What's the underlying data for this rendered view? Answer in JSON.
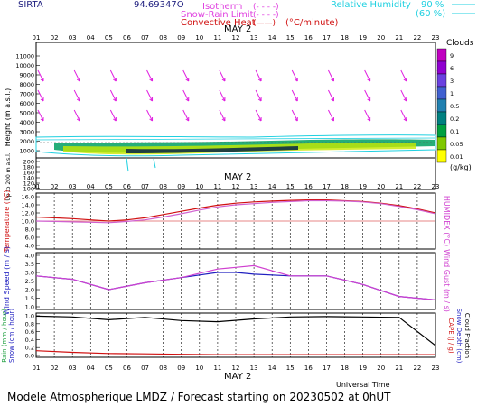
{
  "header": {
    "station": "SIRTA",
    "code": "94.69347O",
    "legend": [
      {
        "label": "Isotherm",
        "sample": "(- - - -)",
        "color": "#e040e0"
      },
      {
        "label": "Snow-Rain Limit",
        "sample": "(- - - -)",
        "color": "#e040e0"
      },
      {
        "label": "Convective Heat",
        "sample": "(——)",
        "unit": "(°C/minute)",
        "color": "#d01010"
      }
    ],
    "humidity": [
      {
        "label": "Relative Humidity",
        "v1": "90 %",
        "v2": "(60 %)",
        "color": "#20d0e0"
      }
    ]
  },
  "axis_hours": [
    "01",
    "02",
    "03",
    "04",
    "05",
    "06",
    "07",
    "08",
    "09",
    "10",
    "11",
    "12",
    "13",
    "14",
    "15",
    "16",
    "17",
    "18",
    "19",
    "20",
    "21",
    "22",
    "23"
  ],
  "day_label": "MAY  2",
  "clouds_legend": {
    "title": "Clouds",
    "unit": "(g/kg)",
    "levels": [
      "9",
      "6",
      "3",
      "1",
      "0.5",
      "0.2",
      "0.1",
      "0.05",
      "0.01"
    ],
    "colors": [
      "#c000c0",
      "#9000d0",
      "#6a40e0",
      "#4060d0",
      "#2080b0",
      "#008080",
      "#00a040",
      "#80c800",
      "#ffff00"
    ]
  },
  "footer": {
    "title": "Modele Atmospherique LMDZ / Forecast starting on 20230502 at 0hUT",
    "universal_time": "Universal Time"
  },
  "chart_data": [
    {
      "type": "heatmap",
      "ylabel": "Height  (m  a.s.l.)",
      "ylabel2": "Up to 200 m a.s.l.",
      "upper_ticks": [
        "11000",
        "10000",
        "9000",
        "8000",
        "7000",
        "6000",
        "5000",
        "4000",
        "3000",
        "2000",
        "1000"
      ],
      "lower_ticks": [
        "200",
        "180",
        "160",
        "140",
        "120",
        "100"
      ],
      "legend": "Clouds"
    },
    {
      "type": "line",
      "ylabel": "Temperature (°C)",
      "ylabel2": "HUMIDEX (°C)",
      "yticks": [
        "16.0",
        "14.0",
        "12.0",
        "10.0",
        "8.0",
        "6.0",
        "4.0"
      ],
      "ylim": [
        4,
        16
      ],
      "x": [
        1,
        2,
        3,
        4,
        5,
        6,
        7,
        8,
        9,
        10,
        11,
        12,
        13,
        14,
        15,
        16,
        17,
        18,
        19,
        20,
        21,
        22,
        23
      ],
      "series": [
        {
          "values": [
            11.0,
            10.8,
            10.6,
            10.3,
            10.0,
            10.3,
            10.8,
            11.6,
            12.4,
            13.2,
            13.9,
            14.4,
            14.7,
            14.9,
            15.1,
            15.2,
            15.2,
            15.0,
            14.8,
            14.4,
            13.8,
            13.0,
            12.0
          ],
          "color": "#d01010"
        },
        {
          "values": [
            10.0,
            9.9,
            9.8,
            9.7,
            9.6,
            9.9,
            10.3,
            11.0,
            11.8,
            12.7,
            13.5,
            14.0,
            14.3,
            14.6,
            14.8,
            15.0,
            15.0,
            14.9,
            14.7,
            14.3,
            13.6,
            12.8,
            11.8
          ],
          "color": "#d060d0"
        }
      ]
    },
    {
      "type": "line",
      "ylabel": "Wind Speed (m / s)",
      "ylabel2": "Wind Gust (m / s)",
      "yticks": [
        "4.0",
        "3.5",
        "3.0",
        "2.5",
        "2.0",
        "1.5",
        "1.0"
      ],
      "ylim": [
        1,
        4
      ],
      "x": [
        1,
        3,
        5,
        7,
        9,
        11,
        12,
        13,
        15,
        17,
        19,
        21,
        23
      ],
      "series": [
        {
          "values": [
            2.8,
            2.6,
            2.0,
            2.4,
            2.7,
            3.0,
            3.0,
            2.9,
            2.8,
            2.8,
            2.3,
            1.6,
            1.4
          ],
          "color": "#2020c0"
        },
        {
          "values": [
            2.8,
            2.6,
            2.0,
            2.4,
            2.7,
            3.2,
            3.3,
            3.4,
            2.8,
            2.8,
            2.3,
            1.6,
            1.4
          ],
          "color": "#d040d0"
        }
      ]
    },
    {
      "type": "line",
      "ylabel": "Rain (mm / hour)",
      "ylabel_snow": "Snow (cm / hour)",
      "ylabel2": "CAPE (J / g)",
      "ylabel3": "Snow Depth (cm)",
      "ylabel4": "Cloud Fraction",
      "yticks": [
        "1.0",
        "0.8",
        "0.6",
        "0.4",
        "0.2",
        "0.0"
      ],
      "ylim": [
        0,
        1
      ],
      "x": [
        1,
        3,
        5,
        7,
        9,
        11,
        13,
        15,
        17,
        19,
        21,
        23
      ],
      "series": [
        {
          "values": [
            0.99,
            0.97,
            0.9,
            0.96,
            0.88,
            0.85,
            0.92,
            0.97,
            0.98,
            0.97,
            0.96,
            0.25
          ],
          "color": "#000000"
        },
        {
          "values": [
            0.12,
            0.08,
            0.05,
            0.04,
            0.03,
            0.02,
            0.02,
            0.02,
            0.02,
            0.02,
            0.02,
            0.02
          ],
          "color": "#d01010"
        }
      ]
    }
  ]
}
